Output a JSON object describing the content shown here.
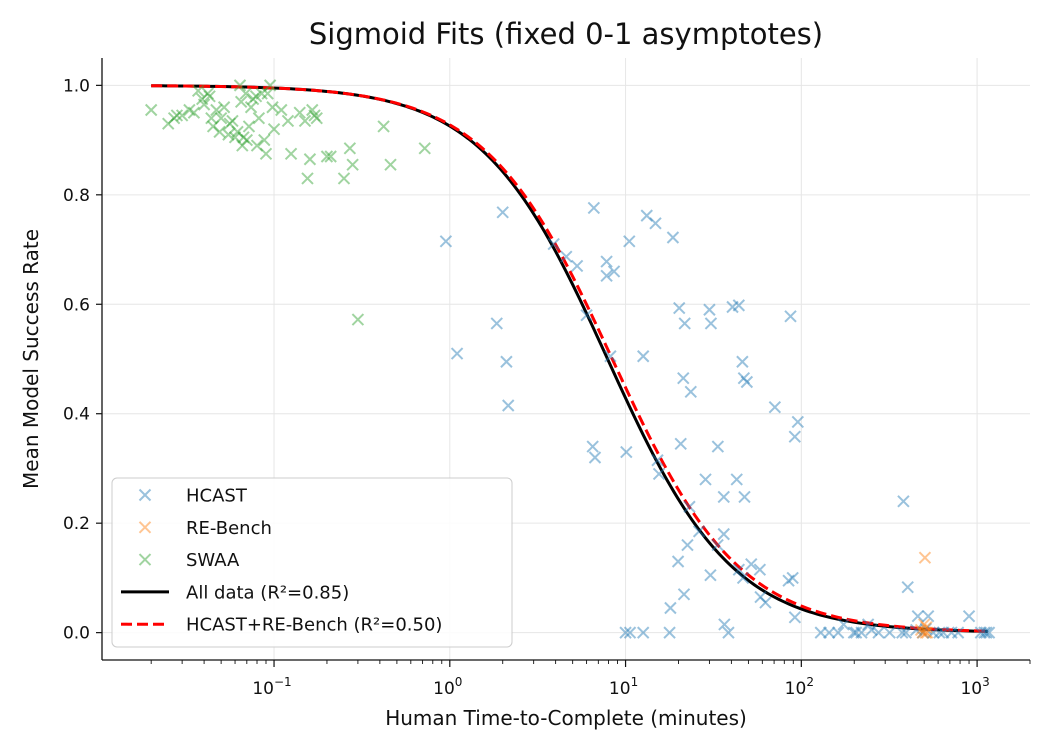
{
  "chart_data": {
    "type": "scatter",
    "title": "Sigmoid Fits (fixed 0-1 asymptotes)",
    "xlabel": "Human Time-to-Complete (minutes)",
    "ylabel": "Mean Model Success Rate",
    "xscale": "log",
    "xlim": [
      0.0105,
      2000
    ],
    "ylim": [
      -0.05,
      1.05
    ],
    "grid": true,
    "legend_position": "lower-left",
    "xticks": [
      {
        "value": 0.1,
        "base": "10",
        "exp": "−1"
      },
      {
        "value": 1,
        "base": "10",
        "exp": "0"
      },
      {
        "value": 10,
        "base": "10",
        "exp": "1"
      },
      {
        "value": 100,
        "base": "10",
        "exp": "2"
      },
      {
        "value": 1000,
        "base": "10",
        "exp": "3"
      }
    ],
    "yticks": [
      {
        "value": 0.0,
        "label": "0.0"
      },
      {
        "value": 0.2,
        "label": "0.2"
      },
      {
        "value": 0.4,
        "label": "0.4"
      },
      {
        "value": 0.6,
        "label": "0.6"
      },
      {
        "value": 0.8,
        "label": "0.8"
      },
      {
        "value": 1.0,
        "label": "1.0"
      }
    ],
    "scatter_series": [
      {
        "name": "HCAST",
        "color": "#1f77b4",
        "points": [
          [
            0.95,
            0.715
          ],
          [
            1.1,
            0.51
          ],
          [
            1.85,
            0.565
          ],
          [
            2.0,
            0.768
          ],
          [
            2.1,
            0.495
          ],
          [
            2.15,
            0.415
          ],
          [
            3.9,
            0.71
          ],
          [
            4.6,
            0.687
          ],
          [
            5.3,
            0.67
          ],
          [
            6.0,
            0.58
          ],
          [
            6.6,
            0.776
          ],
          [
            6.5,
            0.34
          ],
          [
            6.7,
            0.32
          ],
          [
            7.8,
            0.678
          ],
          [
            8.2,
            0.505
          ],
          [
            7.8,
            0.652
          ],
          [
            8.6,
            0.66
          ],
          [
            10.5,
            0.715
          ],
          [
            10.1,
            0.33
          ],
          [
            13.2,
            0.762
          ],
          [
            14.8,
            0.748
          ],
          [
            12.6,
            0.505
          ],
          [
            15.2,
            0.315
          ],
          [
            15.5,
            0.29
          ],
          [
            18.6,
            0.722
          ],
          [
            20.2,
            0.593
          ],
          [
            21.7,
            0.565
          ],
          [
            21.3,
            0.465
          ],
          [
            23.5,
            0.44
          ],
          [
            20.6,
            0.345
          ],
          [
            23.1,
            0.23
          ],
          [
            26.2,
            0.185
          ],
          [
            28.5,
            0.28
          ],
          [
            30.0,
            0.59
          ],
          [
            30.6,
            0.565
          ],
          [
            33.5,
            0.34
          ],
          [
            36.2,
            0.248
          ],
          [
            40.6,
            0.595
          ],
          [
            44.1,
            0.598
          ],
          [
            46.2,
            0.495
          ],
          [
            47.1,
            0.465
          ],
          [
            49.0,
            0.458
          ],
          [
            42.9,
            0.28
          ],
          [
            47.5,
            0.248
          ],
          [
            19.9,
            0.13
          ],
          [
            21.5,
            0.07
          ],
          [
            22.5,
            0.16
          ],
          [
            18.0,
            0.045
          ],
          [
            30.4,
            0.105
          ],
          [
            33.4,
            0.16
          ],
          [
            36.2,
            0.18
          ],
          [
            44.1,
            0.115
          ],
          [
            46.6,
            0.1
          ],
          [
            51.9,
            0.125
          ],
          [
            58.1,
            0.115
          ],
          [
            58.6,
            0.065
          ],
          [
            62.5,
            0.055
          ],
          [
            70.7,
            0.412
          ],
          [
            86.8,
            0.578
          ],
          [
            91.8,
            0.358
          ],
          [
            95.5,
            0.385
          ],
          [
            84.6,
            0.095
          ],
          [
            89.3,
            0.1
          ],
          [
            91.9,
            0.028
          ],
          [
            10.0,
            0.0
          ],
          [
            10.6,
            0.0
          ],
          [
            12.6,
            0.0
          ],
          [
            17.8,
            0.0
          ],
          [
            36.5,
            0.015
          ],
          [
            38.5,
            0.0
          ],
          [
            129,
            0.0
          ],
          [
            144,
            0.0
          ],
          [
            162,
            0.0
          ],
          [
            174,
            0.015
          ],
          [
            199,
            0.0
          ],
          [
            205,
            0.0
          ],
          [
            220,
            0.0
          ],
          [
            240,
            0.015
          ],
          [
            251,
            0.005
          ],
          [
            275,
            0.0
          ],
          [
            318,
            0.0
          ],
          [
            375,
            0.0
          ],
          [
            381,
            0.24
          ],
          [
            393,
            0.0
          ],
          [
            403,
            0.083
          ],
          [
            450,
            0.005
          ],
          [
            460,
            0.03
          ],
          [
            492,
            0.0
          ],
          [
            511,
            0.007
          ],
          [
            527,
            0.03
          ],
          [
            563,
            0.0
          ],
          [
            610,
            0.0
          ],
          [
            642,
            0.0
          ],
          [
            715,
            0.0
          ],
          [
            780,
            0.0
          ],
          [
            900,
            0.03
          ],
          [
            1050,
            0.0
          ],
          [
            1100,
            0.0
          ],
          [
            1130,
            0.0
          ],
          [
            1170,
            0.0
          ]
        ]
      },
      {
        "name": "RE-Bench",
        "color": "#ff7f0e",
        "points": [
          [
            480,
            0.005
          ],
          [
            490,
            0.0
          ],
          [
            500,
            0.015
          ],
          [
            505,
            0.137
          ],
          [
            510,
            0.0
          ],
          [
            515,
            0.01
          ],
          [
            520,
            0.0
          ]
        ]
      },
      {
        "name": "SWAA",
        "color": "#2ca02c",
        "points": [
          [
            0.02,
            0.955
          ],
          [
            0.025,
            0.93
          ],
          [
            0.027,
            0.94
          ],
          [
            0.028,
            0.945
          ],
          [
            0.03,
            0.945
          ],
          [
            0.033,
            0.955
          ],
          [
            0.035,
            0.95
          ],
          [
            0.037,
            0.99
          ],
          [
            0.039,
            0.975
          ],
          [
            0.04,
            0.965
          ],
          [
            0.042,
            0.985
          ],
          [
            0.043,
            0.98
          ],
          [
            0.044,
            0.94
          ],
          [
            0.045,
            0.925
          ],
          [
            0.047,
            0.955
          ],
          [
            0.049,
            0.915
          ],
          [
            0.05,
            0.94
          ],
          [
            0.052,
            0.96
          ],
          [
            0.055,
            0.91
          ],
          [
            0.056,
            0.93
          ],
          [
            0.058,
            0.935
          ],
          [
            0.06,
            0.905
          ],
          [
            0.062,
            0.915
          ],
          [
            0.064,
            1.0
          ],
          [
            0.065,
            0.97
          ],
          [
            0.066,
            0.89
          ],
          [
            0.067,
            0.905
          ],
          [
            0.069,
            0.985
          ],
          [
            0.07,
            0.9
          ],
          [
            0.072,
            0.925
          ],
          [
            0.074,
            0.96
          ],
          [
            0.076,
            0.975
          ],
          [
            0.079,
            0.98
          ],
          [
            0.08,
            0.89
          ],
          [
            0.082,
            0.94
          ],
          [
            0.085,
            0.985
          ],
          [
            0.088,
            0.9
          ],
          [
            0.09,
            0.875
          ],
          [
            0.092,
            0.985
          ],
          [
            0.095,
            1.0
          ],
          [
            0.098,
            0.96
          ],
          [
            0.1,
            0.92
          ],
          [
            0.11,
            0.955
          ],
          [
            0.12,
            0.935
          ],
          [
            0.125,
            0.875
          ],
          [
            0.14,
            0.95
          ],
          [
            0.15,
            0.935
          ],
          [
            0.155,
            0.83
          ],
          [
            0.16,
            0.865
          ],
          [
            0.165,
            0.955
          ],
          [
            0.17,
            0.945
          ],
          [
            0.175,
            0.94
          ],
          [
            0.2,
            0.87
          ],
          [
            0.21,
            0.87
          ],
          [
            0.25,
            0.83
          ],
          [
            0.27,
            0.885
          ],
          [
            0.28,
            0.855
          ],
          [
            0.3,
            0.572
          ],
          [
            0.42,
            0.925
          ],
          [
            0.46,
            0.855
          ],
          [
            0.72,
            0.885
          ]
        ]
      }
    ],
    "fits": [
      {
        "name": "All data (R²=0.85)",
        "color": "#000000",
        "style": "solid",
        "x50": 7.9,
        "slope": 1.22
      },
      {
        "name": "HCAST+RE-Bench (R²=0.50)",
        "color": "#ff0000",
        "style": "dashed",
        "x50": 8.4,
        "slope": 1.2
      }
    ],
    "fit_x_range": [
      0.02,
      1150
    ],
    "legend_entries": [
      {
        "label": "HCAST",
        "kind": "marker",
        "color": "#1f77b4"
      },
      {
        "label": "RE-Bench",
        "kind": "marker",
        "color": "#ff7f0e"
      },
      {
        "label": "SWAA",
        "kind": "marker",
        "color": "#2ca02c"
      },
      {
        "label": "All data (R²=0.85)",
        "kind": "solid",
        "color": "#000000"
      },
      {
        "label": "HCAST+RE-Bench (R²=0.50)",
        "kind": "dashed",
        "color": "#ff0000"
      }
    ]
  }
}
